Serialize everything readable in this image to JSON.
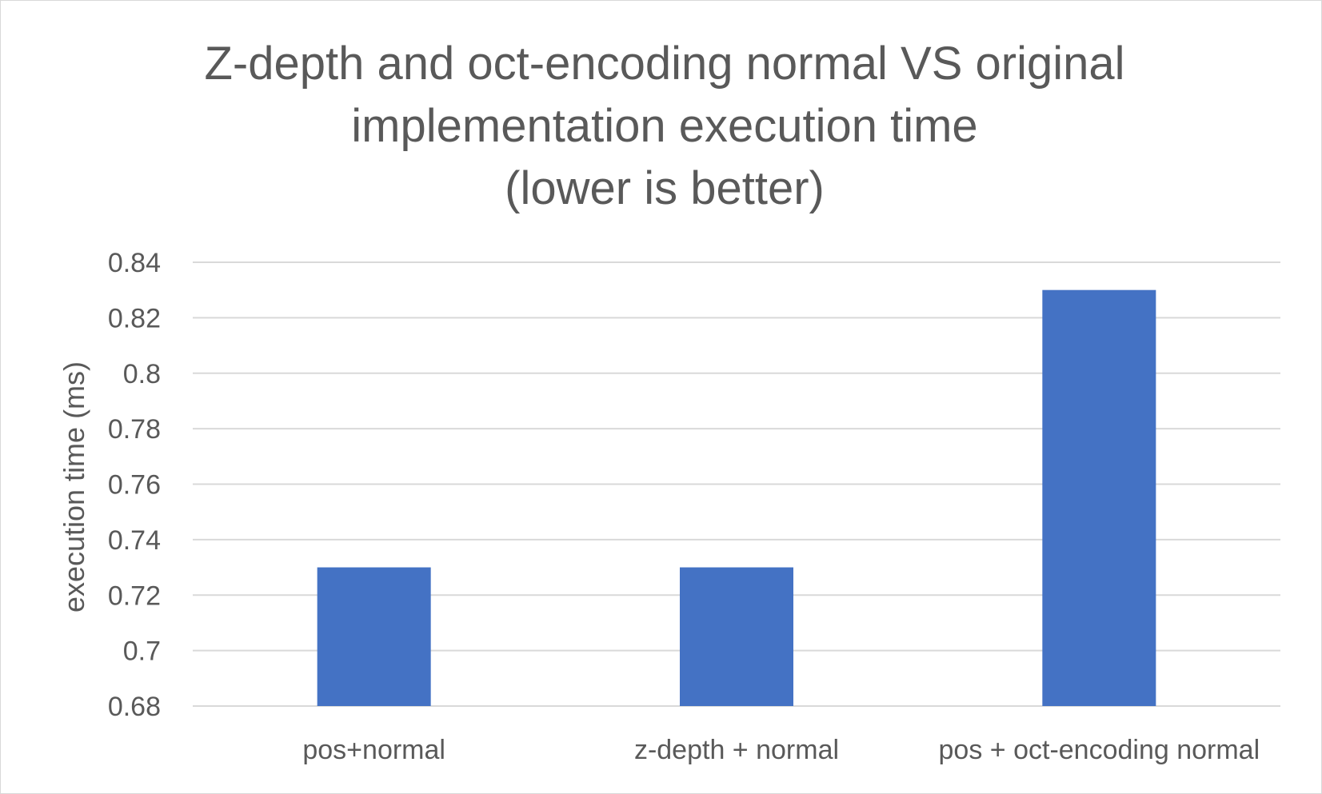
{
  "chart_data": {
    "type": "bar",
    "title_lines": [
      "Z-depth and oct-encoding normal VS original",
      "implementation execution time",
      "(lower is better)"
    ],
    "categories": [
      "pos+normal",
      "z-depth + normal",
      "pos + oct-encoding normal"
    ],
    "values": [
      0.73,
      0.73,
      0.83
    ],
    "ylabel": "execution time (ms)",
    "xlabel": "",
    "ylim": [
      0.68,
      0.84
    ],
    "yticks": [
      "0.68",
      "0.7",
      "0.72",
      "0.74",
      "0.76",
      "0.78",
      "0.8",
      "0.82",
      "0.84"
    ],
    "grid": true,
    "legend": "none",
    "colors": {
      "bar": "#4472C4",
      "grid": "#d9d9d9",
      "text": "#595959"
    }
  }
}
